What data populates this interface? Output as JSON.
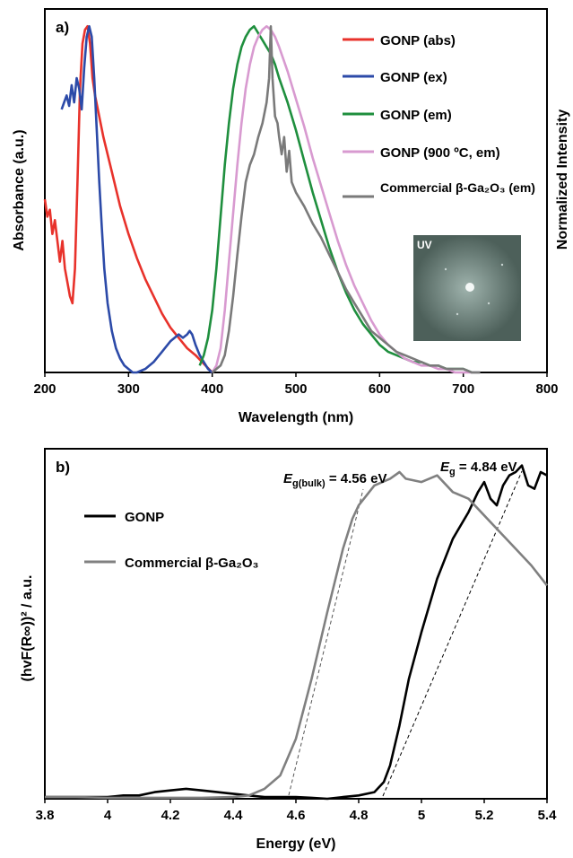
{
  "chart_data": [
    {
      "panel": "a)",
      "type": "line",
      "xlabel": "Wavelength (nm)",
      "ylabel_left": "Absorbance (a.u.)",
      "ylabel_right": "Normalized Intensity",
      "xlim": [
        200,
        800
      ],
      "xticks": [
        "200",
        "300",
        "400",
        "500",
        "600",
        "700",
        "800"
      ],
      "ylim": [
        0,
        1.05
      ],
      "legend_position": "top-right",
      "inset_label": "UV",
      "series": [
        {
          "name": "GONP (abs)",
          "color": "#e8322b",
          "x": [
            200,
            203,
            206,
            209,
            212,
            215,
            218,
            221,
            224,
            227,
            230,
            233,
            236,
            239,
            242,
            245,
            248,
            251,
            254,
            257,
            260,
            270,
            280,
            290,
            300,
            310,
            320,
            330,
            340,
            350,
            360,
            370,
            380,
            390,
            400
          ],
          "y": [
            0.5,
            0.45,
            0.47,
            0.4,
            0.44,
            0.38,
            0.32,
            0.38,
            0.3,
            0.26,
            0.22,
            0.2,
            0.3,
            0.55,
            0.82,
            0.95,
            0.99,
            1.0,
            0.95,
            0.85,
            0.8,
            0.68,
            0.58,
            0.48,
            0.4,
            0.33,
            0.27,
            0.22,
            0.17,
            0.13,
            0.1,
            0.07,
            0.05,
            0.025,
            0.0
          ]
        },
        {
          "name": "GONP (ex)",
          "color": "#2c4aa8",
          "x": [
            220,
            223,
            226,
            229,
            232,
            235,
            238,
            241,
            244,
            247,
            250,
            253,
            256,
            259,
            262,
            265,
            268,
            271,
            275,
            280,
            285,
            290,
            295,
            300,
            305,
            310,
            320,
            330,
            340,
            350,
            355,
            360,
            365,
            370,
            373,
            376,
            380,
            385,
            390,
            395,
            400
          ],
          "y": [
            0.76,
            0.78,
            0.8,
            0.77,
            0.83,
            0.78,
            0.85,
            0.82,
            0.76,
            0.88,
            0.97,
            1.0,
            0.97,
            0.85,
            0.7,
            0.55,
            0.42,
            0.3,
            0.2,
            0.12,
            0.07,
            0.04,
            0.02,
            0.01,
            0.0,
            0.0,
            0.01,
            0.03,
            0.06,
            0.09,
            0.1,
            0.11,
            0.1,
            0.11,
            0.12,
            0.11,
            0.08,
            0.05,
            0.03,
            0.01,
            0.0
          ]
        },
        {
          "name": "GONP (em)",
          "color": "#1f8f3e",
          "x": [
            385,
            390,
            395,
            400,
            405,
            410,
            415,
            420,
            425,
            430,
            435,
            440,
            445,
            450,
            455,
            460,
            465,
            470,
            475,
            480,
            490,
            500,
            510,
            520,
            530,
            540,
            550,
            560,
            570,
            580,
            590,
            600,
            610,
            620,
            630,
            640,
            650,
            660,
            670,
            680,
            690,
            700,
            710,
            720
          ],
          "y": [
            0.02,
            0.05,
            0.1,
            0.18,
            0.3,
            0.45,
            0.6,
            0.72,
            0.82,
            0.89,
            0.94,
            0.97,
            0.99,
            1.0,
            0.98,
            0.96,
            0.94,
            0.92,
            0.89,
            0.85,
            0.78,
            0.7,
            0.61,
            0.52,
            0.44,
            0.36,
            0.29,
            0.23,
            0.18,
            0.14,
            0.11,
            0.08,
            0.06,
            0.05,
            0.04,
            0.03,
            0.03,
            0.02,
            0.02,
            0.01,
            0.01,
            0.01,
            0.0,
            0.0
          ]
        },
        {
          "name": "GONP (900 ºC, em)",
          "color": "#d89ad0",
          "x": [
            400,
            405,
            410,
            415,
            420,
            425,
            430,
            435,
            440,
            445,
            450,
            455,
            460,
            465,
            470,
            475,
            480,
            490,
            500,
            510,
            520,
            530,
            540,
            550,
            560,
            570,
            580,
            590,
            600,
            610,
            620,
            630,
            640,
            650,
            660,
            670,
            680,
            690,
            700,
            710,
            720
          ],
          "y": [
            0.0,
            0.02,
            0.07,
            0.18,
            0.32,
            0.46,
            0.6,
            0.72,
            0.82,
            0.89,
            0.94,
            0.97,
            0.99,
            1.0,
            0.99,
            0.97,
            0.94,
            0.87,
            0.79,
            0.71,
            0.62,
            0.54,
            0.46,
            0.38,
            0.31,
            0.25,
            0.2,
            0.15,
            0.11,
            0.08,
            0.06,
            0.04,
            0.03,
            0.02,
            0.02,
            0.01,
            0.01,
            0.0,
            0.0,
            0.0,
            0.0
          ]
        },
        {
          "name": "Commercial β-Ga₂O₃ (em)",
          "color": "#7a7a7a",
          "x": [
            400,
            405,
            410,
            415,
            420,
            425,
            430,
            435,
            440,
            445,
            450,
            455,
            460,
            465,
            468,
            470,
            472,
            475,
            478,
            480,
            483,
            486,
            489,
            492,
            495,
            500,
            510,
            520,
            530,
            540,
            550,
            560,
            570,
            580,
            590,
            600,
            610,
            620,
            630,
            640,
            650,
            660,
            670,
            680,
            690,
            700,
            710,
            720
          ],
          "y": [
            0.0,
            0.01,
            0.02,
            0.05,
            0.12,
            0.22,
            0.34,
            0.45,
            0.55,
            0.6,
            0.63,
            0.68,
            0.72,
            0.78,
            0.85,
            1.0,
            0.85,
            0.74,
            0.72,
            0.68,
            0.63,
            0.68,
            0.58,
            0.64,
            0.55,
            0.52,
            0.48,
            0.43,
            0.39,
            0.34,
            0.29,
            0.24,
            0.2,
            0.16,
            0.12,
            0.1,
            0.08,
            0.06,
            0.05,
            0.04,
            0.03,
            0.02,
            0.02,
            0.01,
            0.01,
            0.01,
            0.0,
            0.0
          ]
        }
      ]
    },
    {
      "panel": "b)",
      "type": "line",
      "xlabel": "Energy (eV)",
      "ylabel": "(hvF(R∞))² / a.u.",
      "xlim": [
        3.8,
        5.4
      ],
      "xticks": [
        "3.8",
        "4",
        "4.2",
        "4.4",
        "4.6",
        "4.8",
        "5",
        "5.2",
        "5.4"
      ],
      "ylim": [
        0,
        1.05
      ],
      "legend_position": "top-left",
      "annotations": [
        {
          "text_main": "E",
          "text_sub": "g(bulk)",
          "text_rest": " = 4.56 eV"
        },
        {
          "text_main": "E",
          "text_sub": "g",
          "text_rest": " = 4.84 eV"
        }
      ],
      "series": [
        {
          "name": "GONP",
          "color": "#000000",
          "x": [
            3.8,
            3.9,
            4.0,
            4.05,
            4.1,
            4.15,
            4.2,
            4.25,
            4.3,
            4.35,
            4.4,
            4.45,
            4.5,
            4.55,
            4.6,
            4.65,
            4.7,
            4.75,
            4.8,
            4.85,
            4.88,
            4.9,
            4.93,
            4.96,
            5.0,
            5.05,
            5.1,
            5.15,
            5.18,
            5.2,
            5.22,
            5.24,
            5.26,
            5.28,
            5.3,
            5.32,
            5.34,
            5.36,
            5.38,
            5.4
          ],
          "y": [
            0.005,
            0.005,
            0.005,
            0.01,
            0.01,
            0.02,
            0.025,
            0.03,
            0.025,
            0.02,
            0.015,
            0.01,
            0.005,
            0.005,
            0.005,
            0.003,
            0.0,
            0.005,
            0.01,
            0.02,
            0.05,
            0.1,
            0.22,
            0.36,
            0.5,
            0.66,
            0.78,
            0.86,
            0.92,
            0.95,
            0.9,
            0.88,
            0.94,
            0.97,
            0.98,
            1.0,
            0.94,
            0.93,
            0.98,
            0.97
          ]
        },
        {
          "name": "Commercial β-Ga₂O₃",
          "color": "#808080",
          "x": [
            3.8,
            3.9,
            4.0,
            4.1,
            4.2,
            4.3,
            4.4,
            4.45,
            4.5,
            4.55,
            4.6,
            4.65,
            4.7,
            4.75,
            4.78,
            4.8,
            4.85,
            4.9,
            4.93,
            4.95,
            5.0,
            5.05,
            5.1,
            5.15,
            5.2,
            5.25,
            5.3,
            5.35,
            5.4
          ],
          "y": [
            0.005,
            0.005,
            0.003,
            0.003,
            0.003,
            0.003,
            0.005,
            0.01,
            0.03,
            0.07,
            0.18,
            0.36,
            0.56,
            0.75,
            0.84,
            0.88,
            0.94,
            0.96,
            0.98,
            0.96,
            0.95,
            0.97,
            0.92,
            0.9,
            0.85,
            0.8,
            0.75,
            0.7,
            0.64
          ]
        }
      ]
    }
  ]
}
